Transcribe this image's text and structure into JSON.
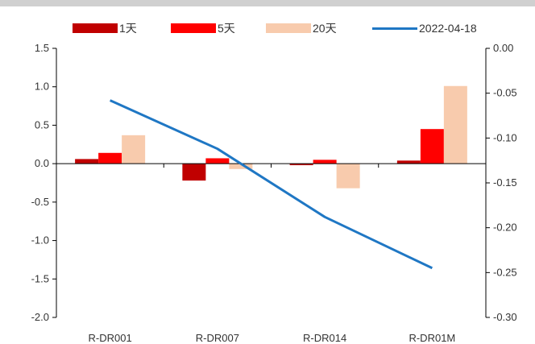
{
  "colors": {
    "s1": "#c00000",
    "s5": "#ff0000",
    "s20": "#f8cbad",
    "line": "#1f77c4",
    "axis": "#000000",
    "topbar": "#d0d0d0"
  },
  "chart_data": {
    "type": "bar",
    "categories": [
      "R-DR001",
      "R-DR007",
      "R-DR014",
      "R-DR01M"
    ],
    "series": [
      {
        "name": "1天",
        "kind": "bar",
        "axis": "left",
        "values": [
          0.06,
          -0.22,
          -0.02,
          0.04
        ]
      },
      {
        "name": "5天",
        "kind": "bar",
        "axis": "left",
        "values": [
          0.14,
          0.07,
          0.05,
          0.45
        ]
      },
      {
        "name": "20天",
        "kind": "bar",
        "axis": "left",
        "values": [
          0.37,
          -0.07,
          -0.32,
          1.01
        ]
      },
      {
        "name": "2022-04-18",
        "kind": "line",
        "axis": "right",
        "values": [
          -0.058,
          -0.112,
          -0.188,
          -0.245
        ]
      }
    ],
    "y_left": {
      "range": [
        -2.0,
        1.5
      ],
      "ticks": [
        "1.5",
        "1.0",
        "0.5",
        "0.0",
        "-0.5",
        "-1.0",
        "-1.5",
        "-2.0"
      ],
      "tick_values": [
        1.5,
        1.0,
        0.5,
        0.0,
        -0.5,
        -1.0,
        -1.5,
        -2.0
      ]
    },
    "y_right": {
      "range": [
        -0.3,
        0.0
      ],
      "ticks": [
        "0.00",
        "-0.05",
        "-0.10",
        "-0.15",
        "-0.20",
        "-0.25",
        "-0.30"
      ],
      "tick_values": [
        0.0,
        -0.05,
        -0.1,
        -0.15,
        -0.2,
        -0.25,
        -0.3
      ]
    },
    "legend_position": "top",
    "grid": false
  }
}
